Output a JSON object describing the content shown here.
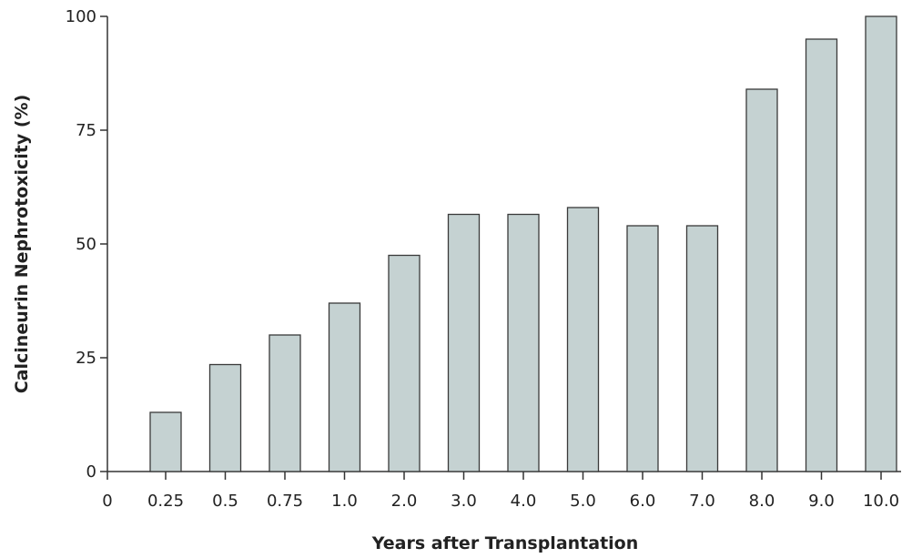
{
  "chart_data": {
    "type": "bar",
    "title": "",
    "xlabel": "Years after Transplantation",
    "ylabel": "Calcineurin Nephrotoxicity (%)",
    "x_origin_label": "0",
    "categories": [
      "0.25",
      "0.5",
      "0.75",
      "1.0",
      "2.0",
      "3.0",
      "4.0",
      "5.0",
      "6.0",
      "7.0",
      "8.0",
      "9.0",
      "10.0"
    ],
    "values": [
      13,
      23.5,
      30,
      37,
      47.5,
      56.5,
      56.5,
      58,
      54,
      54,
      84,
      95,
      100
    ],
    "ylim": [
      0,
      100
    ],
    "yticks": [
      0,
      25,
      50,
      75,
      100
    ],
    "grid": false,
    "bar_color": "#c5d2d2"
  }
}
